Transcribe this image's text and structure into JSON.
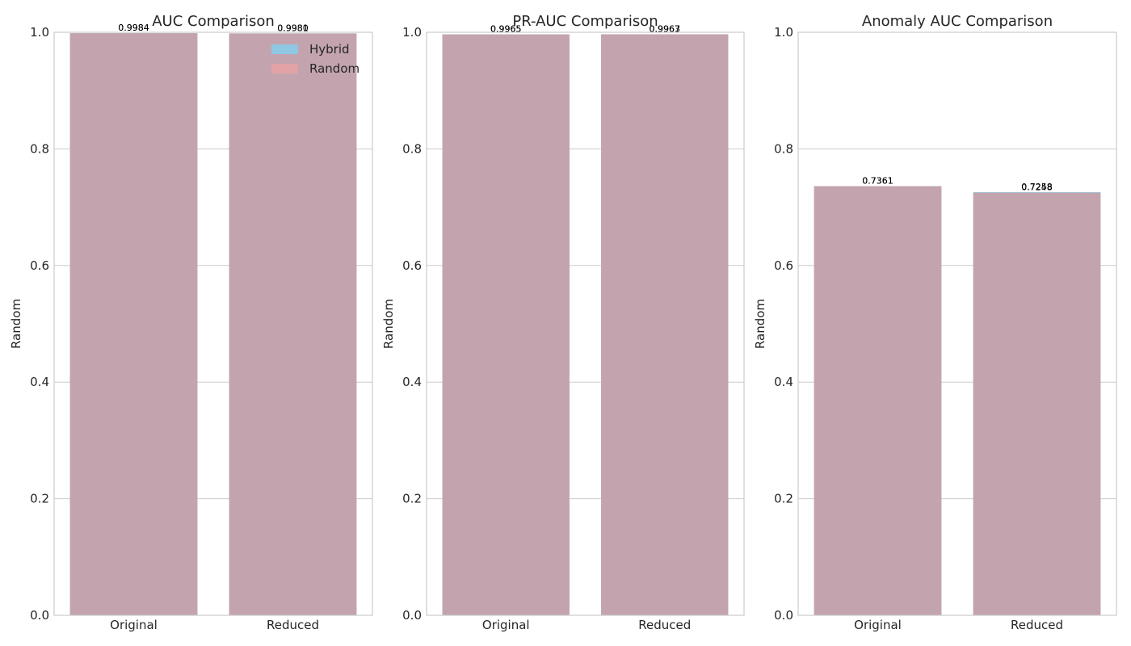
{
  "colors": {
    "hybrid": "#87ceeb",
    "random": "#e6a3a3",
    "overlap": "#c3a4ae",
    "grid": "#cccccc",
    "frame": "#cccccc"
  },
  "chart_data": [
    {
      "type": "bar",
      "title": "AUC Comparison",
      "xlabel": "",
      "ylabel": "Random",
      "ylim": [
        0,
        1.0
      ],
      "yticks": [
        "0.0",
        "0.2",
        "0.4",
        "0.6",
        "0.8",
        "1.0"
      ],
      "grid": true,
      "legend": {
        "placement": "top-right",
        "entries": [
          "Hybrid",
          "Random"
        ]
      },
      "categories": [
        "Original",
        "Reduced"
      ],
      "series": [
        {
          "name": "Hybrid",
          "values": [
            0.9984,
            0.9981
          ],
          "labels": [
            "0.9984",
            "0.9981"
          ]
        },
        {
          "name": "Random",
          "values": [
            0.9984,
            0.998
          ],
          "labels": [
            "0.9984",
            "0.9980"
          ]
        }
      ]
    },
    {
      "type": "bar",
      "title": "PR-AUC Comparison",
      "xlabel": "",
      "ylabel": "Random",
      "ylim": [
        0,
        1.0
      ],
      "yticks": [
        "0.0",
        "0.2",
        "0.4",
        "0.6",
        "0.8",
        "1.0"
      ],
      "grid": true,
      "categories": [
        "Original",
        "Reduced"
      ],
      "series": [
        {
          "name": "Hybrid",
          "values": [
            0.9965,
            0.9963
          ],
          "labels": [
            "0.9965",
            "0.9963"
          ]
        },
        {
          "name": "Random",
          "values": [
            0.9965,
            0.9967
          ],
          "labels": [
            "0.9965",
            "0.9967"
          ]
        }
      ]
    },
    {
      "type": "bar",
      "title": "Anomaly AUC Comparison",
      "xlabel": "",
      "ylabel": "Random",
      "ylim": [
        0,
        1.0
      ],
      "yticks": [
        "0.0",
        "0.2",
        "0.4",
        "0.6",
        "0.8",
        "1.0"
      ],
      "grid": true,
      "categories": [
        "Original",
        "Reduced"
      ],
      "series": [
        {
          "name": "Hybrid",
          "values": [
            0.7361,
            0.7258
          ],
          "labels": [
            "0.7361",
            "0.7258"
          ]
        },
        {
          "name": "Random",
          "values": [
            0.7361,
            0.7248
          ],
          "labels": [
            "0.7361",
            "0.7248"
          ]
        }
      ]
    }
  ]
}
